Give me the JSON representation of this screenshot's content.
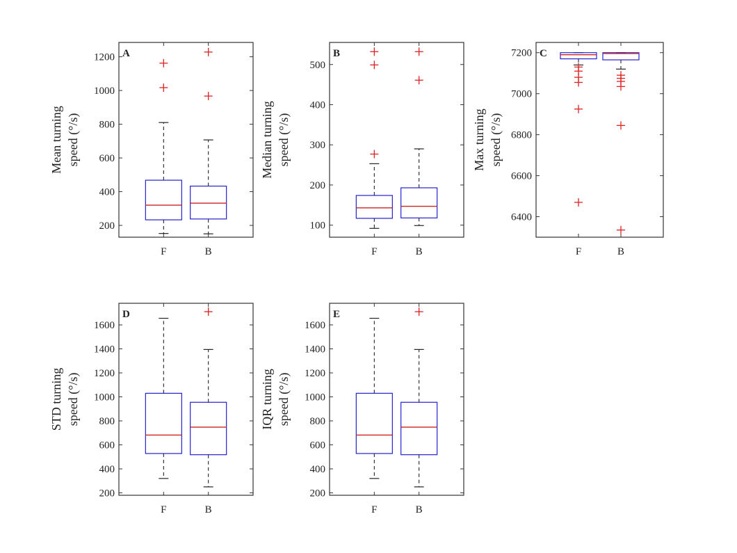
{
  "colors": {
    "box": "#2222cc",
    "median": "#cc2222",
    "whisker": "#222222",
    "outlier": "#dd2222",
    "frame": "#333333"
  },
  "chart_data": [
    {
      "type": "box",
      "panel": "A",
      "ylabel_line1": "Mean turning",
      "ylabel_line2": "speed (°/s)",
      "categories": [
        "F",
        "B"
      ],
      "ylim": [
        130,
        1285
      ],
      "yticks": [
        200,
        400,
        600,
        800,
        1000,
        1200
      ],
      "series": [
        {
          "name": "F",
          "lower_whisker": 152,
          "q1": 233,
          "median": 320,
          "q3": 468,
          "upper_whisker": 810,
          "outliers": [
            1017,
            1162
          ]
        },
        {
          "name": "B",
          "lower_whisker": 150,
          "q1": 238,
          "median": 332,
          "q3": 433,
          "upper_whisker": 707,
          "outliers": [
            967,
            1228
          ]
        }
      ]
    },
    {
      "type": "box",
      "panel": "B",
      "ylabel_line1": "Median turning",
      "ylabel_line2": "speed (°/s)",
      "categories": [
        "F",
        "B"
      ],
      "ylim": [
        70,
        555
      ],
      "yticks": [
        100,
        200,
        300,
        400,
        500
      ],
      "series": [
        {
          "name": "F",
          "lower_whisker": 92,
          "q1": 117,
          "median": 143,
          "q3": 174,
          "upper_whisker": 253,
          "outliers": [
            277,
            499,
            532
          ]
        },
        {
          "name": "B",
          "lower_whisker": 99,
          "q1": 118,
          "median": 147,
          "q3": 193,
          "upper_whisker": 290,
          "outliers": [
            461,
            532
          ]
        }
      ]
    },
    {
      "type": "box",
      "panel": "C",
      "ylabel_line1": "Max turning",
      "ylabel_line2": "speed (°/s)",
      "categories": [
        "F",
        "B"
      ],
      "ylim": [
        6300,
        7250
      ],
      "yticks": [
        6400,
        6600,
        6800,
        7000,
        7200
      ],
      "series": [
        {
          "name": "F",
          "lower_whisker": 7140,
          "q1": 7170,
          "median": 7190,
          "q3": 7200,
          "upper_whisker": 7200,
          "outliers": [
            7130,
            7110,
            7080,
            7055,
            6925,
            6470
          ]
        },
        {
          "name": "B",
          "lower_whisker": 7120,
          "q1": 7165,
          "median": 7196,
          "q3": 7200,
          "upper_whisker": 7200,
          "outliers": [
            7090,
            7075,
            7060,
            7035,
            6845,
            6335
          ]
        }
      ]
    },
    {
      "type": "box",
      "panel": "D",
      "ylabel_line1": "STD turning",
      "ylabel_line2": "speed (°/s)",
      "categories": [
        "F",
        "B"
      ],
      "ylim": [
        180,
        1780
      ],
      "yticks": [
        200,
        400,
        600,
        800,
        1000,
        1200,
        1400,
        1600
      ],
      "series": [
        {
          "name": "F",
          "lower_whisker": 320,
          "q1": 528,
          "median": 682,
          "q3": 1030,
          "upper_whisker": 1655,
          "outliers": []
        },
        {
          "name": "B",
          "lower_whisker": 250,
          "q1": 518,
          "median": 748,
          "q3": 955,
          "upper_whisker": 1395,
          "outliers": [
            1710
          ]
        }
      ]
    },
    {
      "type": "box",
      "panel": "E",
      "ylabel_line1": "IQR turning",
      "ylabel_line2": "speed (°/s)",
      "categories": [
        "F",
        "B"
      ],
      "ylim": [
        180,
        1780
      ],
      "yticks": [
        200,
        400,
        600,
        800,
        1000,
        1200,
        1400,
        1600
      ],
      "series": [
        {
          "name": "F",
          "lower_whisker": 320,
          "q1": 528,
          "median": 682,
          "q3": 1030,
          "upper_whisker": 1655,
          "outliers": []
        },
        {
          "name": "B",
          "lower_whisker": 250,
          "q1": 518,
          "median": 748,
          "q3": 955,
          "upper_whisker": 1395,
          "outliers": [
            1710
          ]
        }
      ]
    }
  ]
}
